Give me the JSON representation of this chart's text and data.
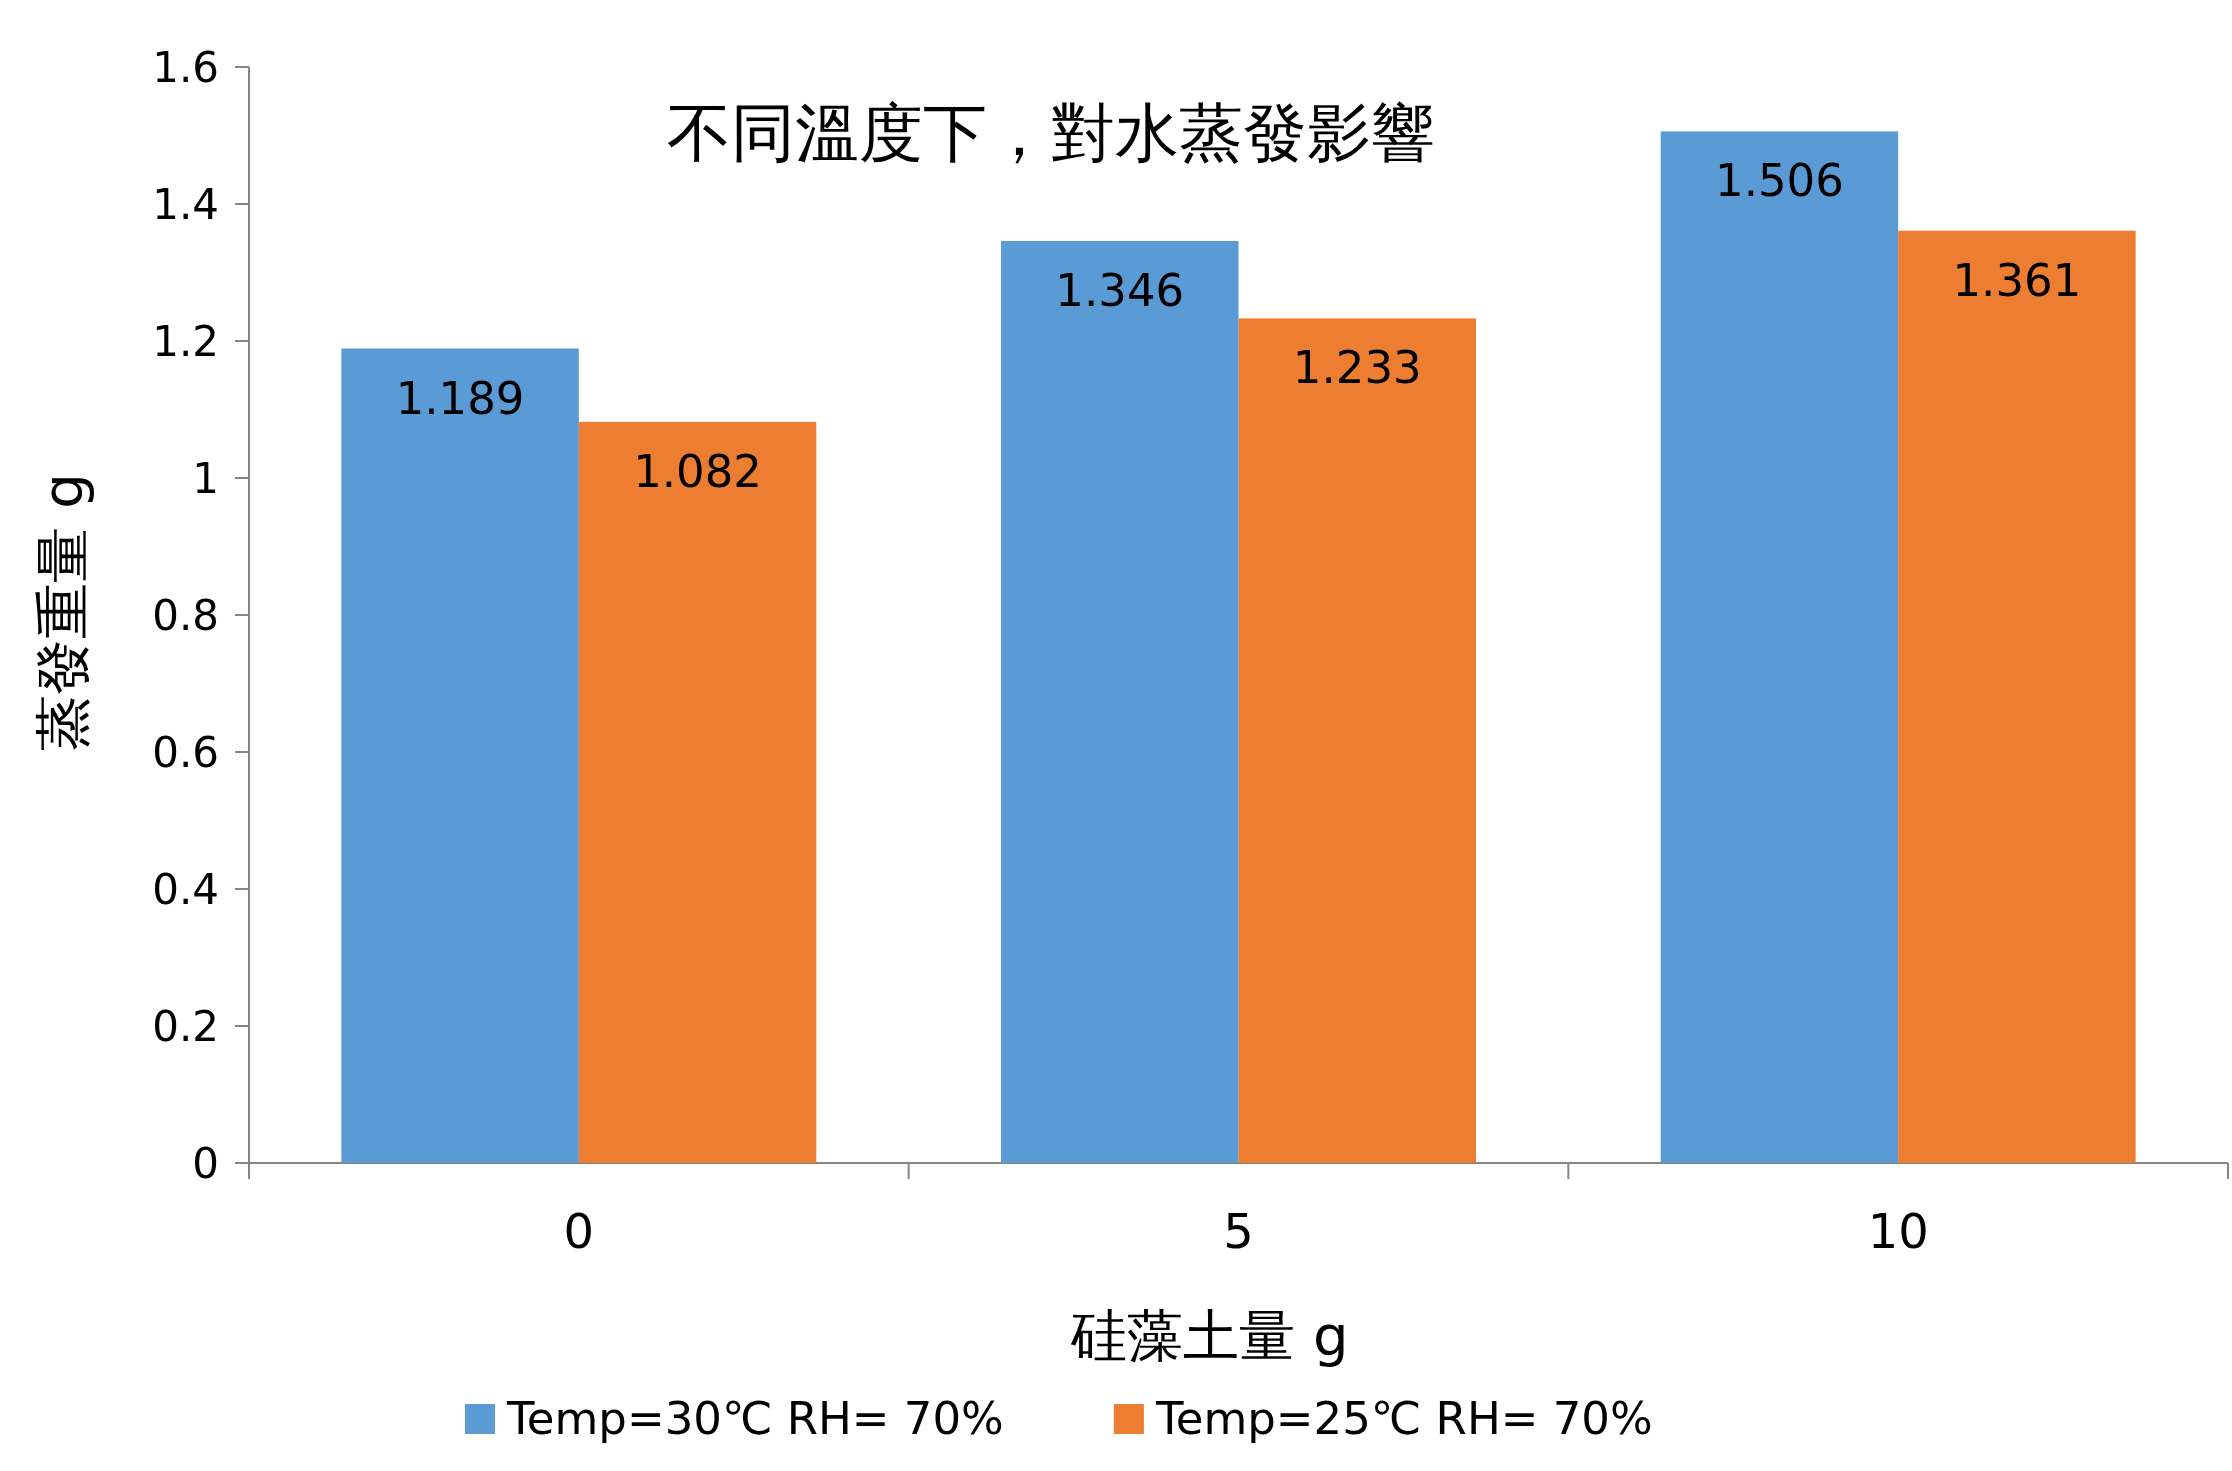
{
  "chart_data": {
    "type": "bar",
    "title": "不同溫度下，對水蒸發影響",
    "xlabel": "硅藻土量 g",
    "ylabel": "蒸發重量 g",
    "categories": [
      "0",
      "5",
      "10"
    ],
    "series": [
      {
        "name": "Temp=30℃  RH=  70%",
        "color": "#5b9bd5",
        "values": [
          1.189,
          1.346,
          1.506
        ]
      },
      {
        "name": "Temp=25℃  RH=  70%",
        "color": "#ed7d31",
        "values": [
          1.082,
          1.233,
          1.361
        ]
      }
    ],
    "ylim": [
      0,
      1.6
    ],
    "yticks": [
      0,
      0.2,
      0.4,
      0.6,
      0.8,
      1,
      1.2,
      1.4,
      1.6
    ],
    "data_labels": true,
    "legend": "bottom"
  }
}
